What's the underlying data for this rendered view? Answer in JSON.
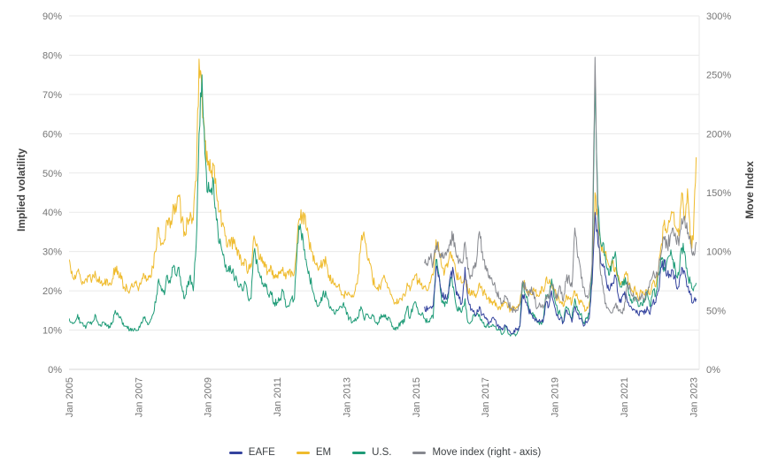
{
  "chart_data": {
    "type": "line",
    "title": "",
    "grid": "horizontal",
    "legend_position": "bottom",
    "x_axis": {
      "domain": [
        2005.0,
        2023.17
      ],
      "tick_values": [
        2005,
        2007,
        2009,
        2011,
        2013,
        2015,
        2017,
        2019,
        2021,
        2023
      ],
      "tick_labels": [
        "Jan 2005",
        "Jan 2007",
        "Jan 2009",
        "Jan 2011",
        "Jan 2013",
        "Jan 2015",
        "Jan 2017",
        "Jan 2019",
        "Jan 2021",
        "Jan 2023"
      ]
    },
    "left_axis": {
      "label": "Implied volatility",
      "min": 0,
      "max": 90,
      "tick_values": [
        0,
        10,
        20,
        30,
        40,
        50,
        60,
        70,
        80,
        90
      ],
      "tick_labels": [
        "0%",
        "10%",
        "20%",
        "30%",
        "40%",
        "50%",
        "60%",
        "70%",
        "80%",
        "90%"
      ]
    },
    "right_axis": {
      "label": "Move Index",
      "min": 0,
      "max": 300,
      "tick_values": [
        0,
        50,
        100,
        150,
        200,
        250,
        300
      ],
      "tick_labels": [
        "0%",
        "50%",
        "100%",
        "150%",
        "200%",
        "250%",
        "300%"
      ]
    },
    "colors": {
      "grid": "#eaeaea",
      "axis_line": "#d6d6d6",
      "tick_text": "#757575"
    },
    "series": [
      {
        "name": "EAFE",
        "color": "#34439e",
        "axis": "left",
        "x_start": 2015.25,
        "x_step": 0.0833333,
        "values": [
          16,
          15,
          16,
          16,
          26,
          24,
          19,
          18,
          19,
          24,
          25,
          19,
          18,
          17,
          26,
          18,
          15,
          15,
          14,
          16,
          14,
          13,
          12,
          12,
          13,
          11,
          11,
          10,
          11,
          10,
          9,
          10,
          10,
          11,
          19,
          17,
          15,
          14,
          13,
          12,
          12,
          12,
          17,
          16,
          20,
          16,
          14,
          13,
          12,
          15,
          14,
          12,
          16,
          14,
          13,
          11,
          12,
          13,
          22,
          40,
          32,
          27,
          26,
          22,
          20,
          22,
          24,
          19,
          17,
          19,
          18,
          16,
          15,
          15,
          14,
          15,
          14,
          16,
          14,
          17,
          17,
          20,
          26,
          28,
          24,
          24,
          25,
          22,
          21,
          26,
          25,
          21,
          19,
          17,
          18
        ]
      },
      {
        "name": "EM",
        "color": "#efbb2d",
        "axis": "left",
        "x_start": 2005.0,
        "x_step": 0.0833333,
        "values": [
          28,
          25,
          24,
          25,
          23,
          22,
          23,
          24,
          23,
          25,
          23,
          22,
          22,
          23,
          22,
          23,
          26,
          25,
          23,
          21,
          21,
          20,
          21,
          22,
          20,
          22,
          24,
          23,
          24,
          26,
          30,
          36,
          32,
          33,
          38,
          36,
          42,
          40,
          44,
          38,
          35,
          38,
          40,
          38,
          48,
          79,
          70,
          58,
          52,
          50,
          52,
          45,
          40,
          37,
          34,
          32,
          33,
          32,
          31,
          28,
          27,
          28,
          25,
          26,
          34,
          32,
          28,
          27,
          26,
          25,
          26,
          24,
          24,
          25,
          26,
          23,
          24,
          25,
          25,
          34,
          38,
          40,
          36,
          33,
          30,
          27,
          26,
          26,
          28,
          27,
          24,
          22,
          22,
          21,
          20,
          19,
          19,
          19,
          19,
          20,
          24,
          32,
          35,
          30,
          27,
          23,
          21,
          20,
          22,
          24,
          22,
          20,
          18,
          17,
          17,
          18,
          19,
          22,
          20,
          23,
          24,
          22,
          22,
          21,
          20,
          22,
          24,
          33,
          30,
          26,
          25,
          26,
          30,
          28,
          24,
          23,
          22,
          24,
          20,
          19,
          20,
          19,
          22,
          20,
          19,
          18,
          17,
          17,
          16,
          16,
          16,
          17,
          16,
          15,
          16,
          16,
          17,
          22,
          21,
          20,
          19,
          20,
          19,
          20,
          20,
          23,
          22,
          22,
          20,
          18,
          17,
          16,
          19,
          18,
          17,
          20,
          18,
          17,
          16,
          15,
          17,
          22,
          45,
          38,
          32,
          30,
          28,
          26,
          27,
          26,
          24,
          22,
          23,
          24,
          22,
          20,
          20,
          18,
          20,
          19,
          20,
          19,
          22,
          21,
          26,
          32,
          38,
          35,
          38,
          40,
          36,
          34,
          45,
          38,
          46,
          32,
          33,
          54
        ]
      },
      {
        "name": "U.S.",
        "color": "#1e9b77",
        "axis": "left",
        "x_start": 2005.0,
        "x_step": 0.0833333,
        "values": [
          13,
          12,
          12,
          14,
          12,
          11,
          11,
          12,
          12,
          14,
          12,
          11,
          12,
          11,
          11,
          12,
          15,
          14,
          13,
          11,
          11,
          10,
          10,
          10,
          10,
          12,
          13,
          12,
          12,
          14,
          17,
          23,
          20,
          19,
          24,
          22,
          26,
          24,
          26,
          21,
          18,
          21,
          24,
          20,
          32,
          60,
          75,
          55,
          45,
          45,
          48,
          38,
          32,
          30,
          26,
          25,
          25,
          24,
          23,
          21,
          20,
          22,
          18,
          18,
          30,
          28,
          24,
          22,
          21,
          19,
          19,
          17,
          17,
          18,
          20,
          16,
          16,
          18,
          18,
          32,
          37,
          33,
          28,
          25,
          21,
          18,
          16,
          17,
          20,
          19,
          16,
          15,
          14,
          15,
          16,
          17,
          14,
          13,
          12,
          13,
          13,
          16,
          13,
          14,
          13,
          14,
          12,
          12,
          14,
          14,
          13,
          13,
          11,
          10,
          11,
          12,
          12,
          16,
          13,
          16,
          17,
          14,
          14,
          13,
          12,
          13,
          13,
          28,
          24,
          17,
          16,
          18,
          23,
          21,
          16,
          15,
          15,
          18,
          12,
          12,
          14,
          14,
          14,
          12,
          11,
          11,
          11,
          11,
          10,
          10,
          9,
          11,
          9,
          9,
          9,
          9,
          11,
          22,
          19,
          16,
          14,
          14,
          12,
          12,
          12,
          19,
          18,
          23,
          18,
          15,
          14,
          12,
          16,
          15,
          13,
          18,
          15,
          14,
          12,
          13,
          14,
          25,
          72,
          42,
          32,
          32,
          26,
          24,
          28,
          30,
          23,
          21,
          23,
          22,
          19,
          17,
          18,
          16,
          17,
          17,
          20,
          16,
          20,
          19,
          24,
          28,
          26,
          28,
          29,
          28,
          24,
          24,
          31,
          30,
          24,
          22,
          20,
          22
        ]
      },
      {
        "name": "Move index (right - axis)",
        "color": "#87898f",
        "axis": "right",
        "x_start": 2015.25,
        "x_step": 0.0833333,
        "values": [
          90,
          88,
          95,
          90,
          105,
          100,
          95,
          98,
          102,
          110,
          115,
          96,
          92,
          90,
          108,
          85,
          80,
          88,
          92,
          117,
          100,
          85,
          80,
          78,
          72,
          65,
          60,
          56,
          62,
          56,
          52,
          50,
          50,
          55,
          75,
          68,
          62,
          70,
          60,
          52,
          55,
          52,
          62,
          60,
          72,
          66,
          60,
          70,
          58,
          75,
          80,
          70,
          120,
          95,
          85,
          70,
          62,
          65,
          90,
          265,
          120,
          80,
          65,
          52,
          50,
          48,
          55,
          50,
          48,
          50,
          70,
          72,
          62,
          60,
          58,
          62,
          60,
          65,
          75,
          80,
          78,
          85,
          100,
          110,
          105,
          112,
          120,
          110,
          105,
          128,
          130,
          115,
          110,
          100,
          108
        ]
      }
    ]
  }
}
